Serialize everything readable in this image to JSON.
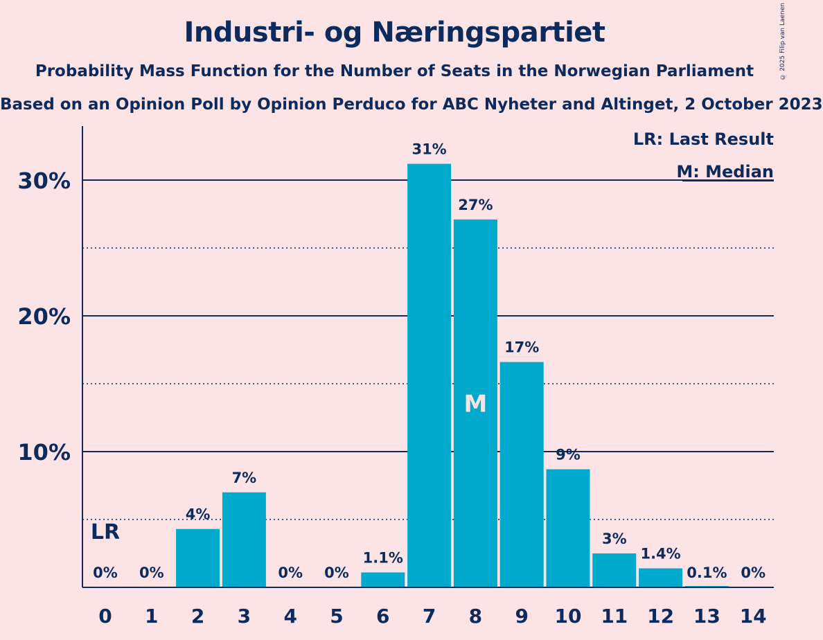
{
  "header": {
    "title": "Industri- og Næringspartiet",
    "subtitle": "Probability Mass Function for the Number of Seats in the Norwegian Parliament",
    "source": "Based on an Opinion Poll by Opinion Perduco for ABC Nyheter and Altinget, 2 October 2023",
    "copyright": "© 2025 Filip van Laenen"
  },
  "legend": {
    "last_result": "LR: Last Result",
    "median": "M: Median"
  },
  "chart_data": {
    "type": "bar",
    "title": "Industri- og Næringspartiet",
    "categories": [
      "0",
      "1",
      "2",
      "3",
      "4",
      "5",
      "6",
      "7",
      "8",
      "9",
      "10",
      "11",
      "12",
      "13",
      "14"
    ],
    "values": [
      0,
      0,
      4.3,
      7.0,
      0,
      0,
      1.1,
      31.2,
      27.1,
      16.6,
      8.7,
      2.5,
      1.4,
      0.1,
      0
    ],
    "labels": [
      "0%",
      "0%",
      "4%",
      "7%",
      "0%",
      "0%",
      "1.1%",
      "31%",
      "27%",
      "17%",
      "9%",
      "3%",
      "1.4%",
      "0.1%",
      "0%"
    ],
    "ylim": [
      0,
      34
    ],
    "yticks": [
      10,
      20,
      30
    ],
    "ytick_labels": [
      "10%",
      "20%",
      "30%"
    ],
    "minor_gridlines": [
      5,
      15,
      25
    ],
    "last_result_seat": 0,
    "last_result_mark": "LR",
    "median_seat": 8,
    "median_mark": "M",
    "bar_color": "#00AACC",
    "legend_position": "top-right"
  }
}
